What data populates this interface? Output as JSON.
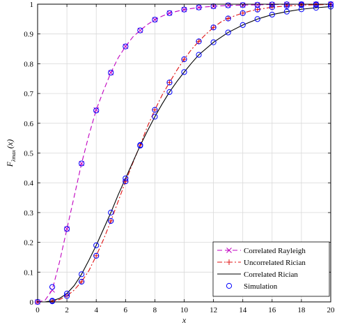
{
  "chart_data": {
    "type": "line",
    "xlabel": "x",
    "ylabel": {
      "base": "F",
      "subscript": "λmax",
      "arg": "(x)"
    },
    "xlim": [
      0,
      20
    ],
    "ylim": [
      0,
      1
    ],
    "xticks": [
      0,
      2,
      4,
      6,
      8,
      10,
      12,
      14,
      16,
      18,
      20
    ],
    "xtick_labels": [
      "0",
      "2",
      "4",
      "6",
      "8",
      "10",
      "12",
      "14",
      "16",
      "18",
      "20"
    ],
    "yticks": [
      0,
      0.1,
      0.2,
      0.3,
      0.4,
      0.5,
      0.6,
      0.7,
      0.8,
      0.9,
      1
    ],
    "ytick_labels": [
      "0",
      "0.1",
      "0.2",
      "0.3",
      "0.4",
      "0.5",
      "0.6",
      "0.7",
      "0.8",
      "0.9",
      "1"
    ],
    "grid": true,
    "legend_position": "bottom-right",
    "series": [
      {
        "name": "Correlated Rayleigh",
        "color": "#c000c0",
        "line": "dashed",
        "marker": "x",
        "x": [
          0,
          0.5,
          1,
          1.5,
          2,
          2.5,
          3,
          3.5,
          4,
          4.5,
          5,
          5.5,
          6,
          6.5,
          7,
          7.5,
          8,
          8.5,
          9,
          10,
          11,
          12,
          13,
          14,
          15,
          16,
          17,
          18,
          19,
          20
        ],
        "y": [
          0,
          0.005,
          0.04,
          0.135,
          0.245,
          0.355,
          0.465,
          0.56,
          0.645,
          0.71,
          0.77,
          0.82,
          0.858,
          0.89,
          0.912,
          0.932,
          0.948,
          0.96,
          0.97,
          0.982,
          0.989,
          0.993,
          0.996,
          0.997,
          0.998,
          0.999,
          0.9995,
          0.9998,
          0.9999,
          1.0
        ]
      },
      {
        "name": "Uncorrelated Rician",
        "color": "#e01010",
        "line": "dashdot",
        "marker": "+",
        "x": [
          0,
          0.5,
          1,
          1.5,
          2,
          2.5,
          3,
          3.5,
          4,
          4.5,
          5,
          5.5,
          6,
          6.5,
          7,
          7.5,
          8,
          8.5,
          9,
          9.5,
          10,
          10.5,
          11,
          11.5,
          12,
          12.5,
          13,
          13.5,
          14,
          14.5,
          15,
          16,
          17,
          18,
          19,
          20
        ],
        "y": [
          0,
          0.0,
          0.002,
          0.008,
          0.02,
          0.04,
          0.068,
          0.105,
          0.155,
          0.21,
          0.272,
          0.338,
          0.405,
          0.467,
          0.527,
          0.59,
          0.645,
          0.695,
          0.737,
          0.778,
          0.815,
          0.848,
          0.875,
          0.9,
          0.922,
          0.94,
          0.952,
          0.962,
          0.97,
          0.977,
          0.982,
          0.99,
          0.994,
          0.997,
          0.998,
          0.999
        ]
      },
      {
        "name": "Correlated Rician",
        "color": "#000000",
        "line": "solid",
        "marker": "none",
        "x": [
          0,
          0.5,
          1,
          1.5,
          2,
          2.5,
          3,
          3.5,
          4,
          4.5,
          5,
          5.5,
          6,
          6.5,
          7,
          7.5,
          8,
          8.5,
          9,
          9.5,
          10,
          10.5,
          11,
          12,
          13,
          14,
          15,
          16,
          17,
          18,
          19,
          20
        ],
        "y": [
          0,
          0.0,
          0.004,
          0.012,
          0.028,
          0.055,
          0.093,
          0.14,
          0.19,
          0.245,
          0.3,
          0.36,
          0.415,
          0.47,
          0.525,
          0.575,
          0.622,
          0.665,
          0.705,
          0.74,
          0.772,
          0.802,
          0.83,
          0.872,
          0.905,
          0.93,
          0.95,
          0.965,
          0.975,
          0.983,
          0.988,
          0.992
        ]
      },
      {
        "name": "Simulation",
        "color": "#0000ff",
        "line": "none",
        "marker": "o",
        "points": [
          [
            0,
            0
          ],
          [
            1,
            0.05
          ],
          [
            2,
            0.245
          ],
          [
            3,
            0.465
          ],
          [
            4,
            0.643
          ],
          [
            5,
            0.77
          ],
          [
            6,
            0.858
          ],
          [
            7,
            0.912
          ],
          [
            8,
            0.948
          ],
          [
            9,
            0.97
          ],
          [
            10,
            0.982
          ],
          [
            11,
            0.989
          ],
          [
            12,
            0.993
          ],
          [
            13,
            0.996
          ],
          [
            14,
            0.997
          ],
          [
            15,
            0.998
          ],
          [
            16,
            0.999
          ],
          [
            17,
            0.9995
          ],
          [
            18,
            0.9998
          ],
          [
            19,
            0.9999
          ],
          [
            20,
            1.0
          ],
          [
            1,
            0.002
          ],
          [
            2,
            0.02
          ],
          [
            3,
            0.068
          ],
          [
            4,
            0.155
          ],
          [
            5,
            0.272
          ],
          [
            6,
            0.405
          ],
          [
            7,
            0.527
          ],
          [
            8,
            0.645
          ],
          [
            9,
            0.737
          ],
          [
            10,
            0.815
          ],
          [
            11,
            0.875
          ],
          [
            12,
            0.922
          ],
          [
            13,
            0.952
          ],
          [
            14,
            0.97
          ],
          [
            15,
            0.982
          ],
          [
            16,
            0.99
          ],
          [
            17,
            0.994
          ],
          [
            18,
            0.997
          ],
          [
            19,
            0.998
          ],
          [
            20,
            0.999
          ],
          [
            1,
            0.004
          ],
          [
            2,
            0.028
          ],
          [
            3,
            0.093
          ],
          [
            4,
            0.19
          ],
          [
            5,
            0.3
          ],
          [
            6,
            0.415
          ],
          [
            7,
            0.525
          ],
          [
            8,
            0.622
          ],
          [
            9,
            0.705
          ],
          [
            10,
            0.772
          ],
          [
            11,
            0.83
          ],
          [
            12,
            0.872
          ],
          [
            13,
            0.905
          ],
          [
            14,
            0.93
          ],
          [
            15,
            0.95
          ],
          [
            16,
            0.965
          ],
          [
            17,
            0.975
          ],
          [
            18,
            0.983
          ],
          [
            19,
            0.988
          ],
          [
            20,
            0.992
          ]
        ]
      }
    ]
  }
}
